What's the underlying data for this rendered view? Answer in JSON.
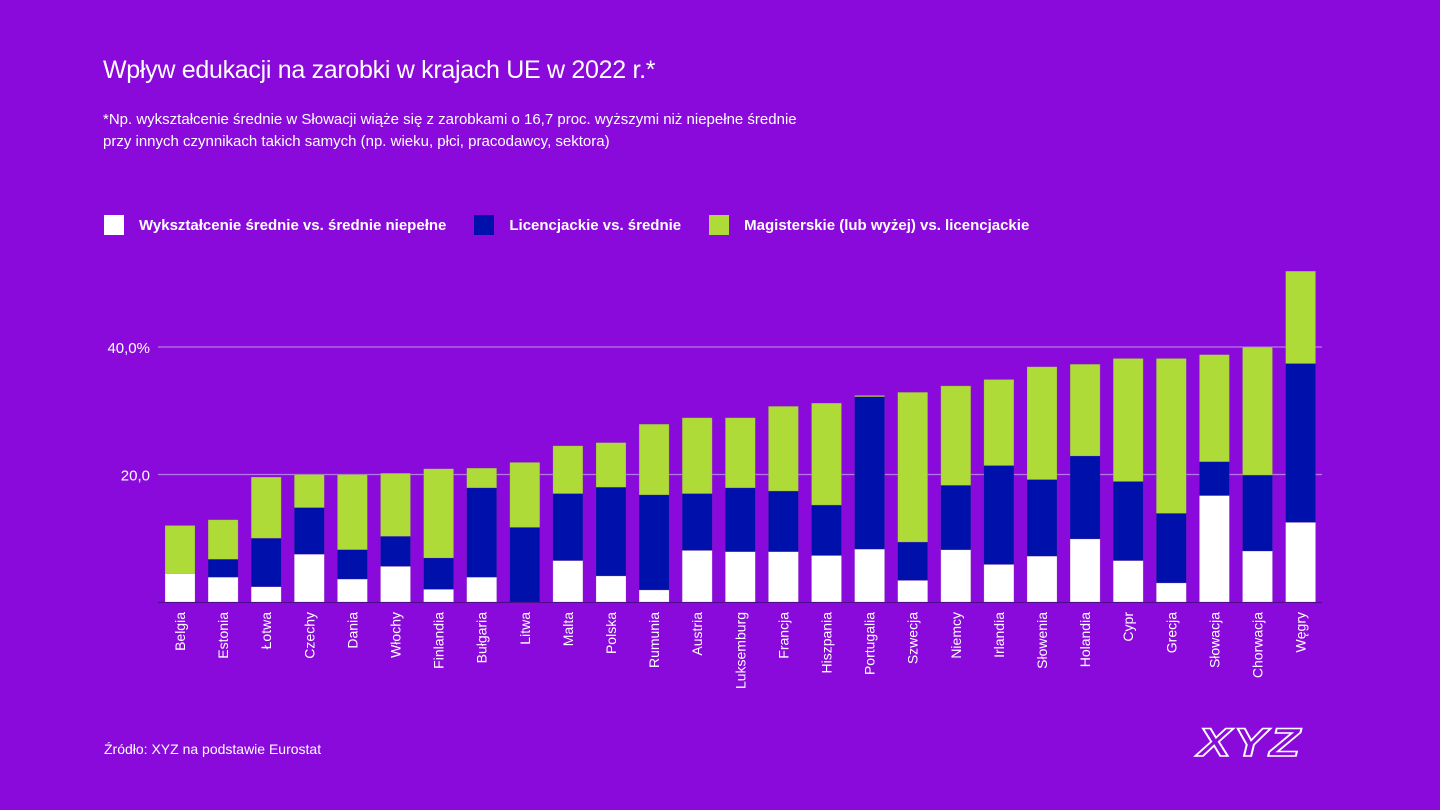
{
  "header": {
    "title": "Wpływ edukacji na zarobki w krajach UE w 2022 r.*",
    "subtitle_lines": [
      "*Np. wykształcenie średnie w Słowacji wiąże się z zarobkami o 16,7 proc. wyższymi niż niepełne średnie",
      "przy innych czynnikach takich samych (np. wieku, płci, pracodawcy, sektora)"
    ]
  },
  "colors": {
    "background": "#8a0adb",
    "series_secondary": "#ffffff",
    "series_bachelor": "#0010aa",
    "series_master": "#aedb38",
    "grid": "#b57ae8"
  },
  "footer": {
    "source": "Źródło: XYZ na podstawie Eurostat",
    "logo_text": "XYZ"
  },
  "chart_data": {
    "type": "bar",
    "stacked": true,
    "title": "Wpływ edukacji na zarobki w krajach UE w 2022 r.*",
    "xlabel": "",
    "ylabel": "",
    "ylim": [
      0,
      52
    ],
    "yticks": [
      20,
      40
    ],
    "ytick_labels": [
      "20,0",
      "40,0%"
    ],
    "grid": true,
    "legend_position": "top-left",
    "categories": [
      "Belgia",
      "Estonia",
      "Łotwa",
      "Czechy",
      "Dania",
      "Włochy",
      "Finlandia",
      "Bułgaria",
      "Litwa",
      "Malta",
      "Polska",
      "Rumunia",
      "Austria",
      "Luksemburg",
      "Francja",
      "Hiszpania",
      "Portugalia",
      "Szwecja",
      "Niemcy",
      "Irlandia",
      "Słowenia",
      "Holandia",
      "Cypr",
      "Grecja",
      "Słowacja",
      "Chorwacja",
      "Węgry"
    ],
    "series": [
      {
        "name": "Wykształcenie średnie vs. średnie niepełne",
        "color": "#ffffff",
        "values": [
          4.5,
          3.9,
          2.4,
          7.5,
          3.6,
          5.6,
          2.0,
          3.9,
          0.0,
          6.5,
          4.1,
          1.9,
          8.1,
          7.9,
          7.9,
          7.3,
          8.3,
          3.4,
          8.2,
          5.9,
          7.2,
          9.9,
          6.5,
          3.0,
          16.7,
          8.0,
          12.5
        ]
      },
      {
        "name": "Licencjackie vs. średnie",
        "color": "#0010aa",
        "values": [
          0.0,
          2.8,
          7.6,
          7.3,
          4.6,
          4.7,
          4.9,
          14.0,
          11.7,
          10.5,
          13.9,
          14.9,
          8.9,
          10.0,
          9.5,
          7.9,
          23.9,
          6.0,
          10.1,
          15.5,
          12.0,
          13.0,
          12.4,
          10.9,
          5.3,
          11.9,
          24.9
        ]
      },
      {
        "name": "Magisterskie (lub wyżej) vs. licencjackie",
        "color": "#aedb38",
        "values": [
          7.5,
          6.2,
          9.6,
          5.2,
          11.8,
          9.9,
          14.0,
          3.1,
          10.2,
          7.5,
          7.0,
          11.1,
          11.9,
          11.0,
          13.3,
          16.0,
          0.2,
          23.5,
          15.6,
          13.5,
          17.7,
          14.4,
          19.3,
          24.3,
          16.8,
          20.1,
          14.5
        ]
      }
    ]
  }
}
